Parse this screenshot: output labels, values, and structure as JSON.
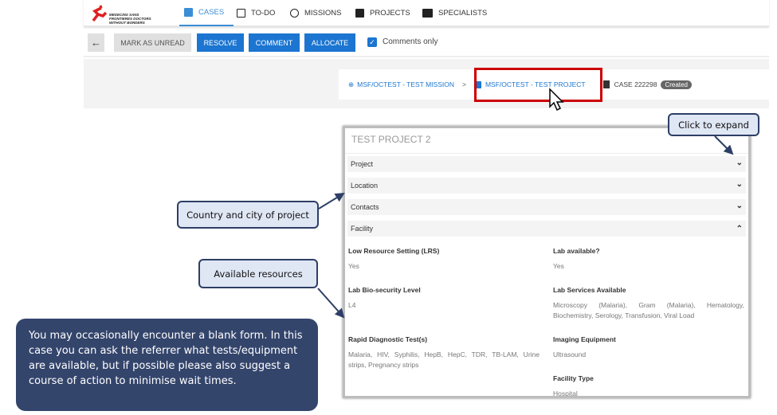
{
  "nav": {
    "logo_text": "MEDECINS SANS FRONTIERES DOCTORS WITHOUT BORDERS",
    "tabs": [
      {
        "label": "CASES",
        "icon": "clipboard-icon",
        "active": true
      },
      {
        "label": "TO-DO",
        "icon": "calendar-check-icon"
      },
      {
        "label": "MISSIONS",
        "icon": "globe-icon"
      },
      {
        "label": "PROJECTS",
        "icon": "plus-square-icon"
      },
      {
        "label": "SPECIALISTS",
        "icon": "id-card-icon"
      }
    ]
  },
  "toolbar": {
    "back_icon": "arrow-left-icon",
    "mark_unread": "MARK AS UNREAD",
    "resolve": "RESOLVE",
    "comment": "COMMENT",
    "allocate": "ALLOCATE",
    "comments_only": "Comments only",
    "comments_only_checked": true
  },
  "breadcrumb": {
    "mission": "MSF/OCTEST - TEST MISSION",
    "sep": ">",
    "project": "MSF/OCTEST - TEST PROJECT",
    "case": "CASE 222298",
    "status": "Created"
  },
  "card": {
    "title": "TEST PROJECT 2",
    "sections": [
      {
        "label": "Project",
        "expanded": false
      },
      {
        "label": "Location",
        "expanded": false
      },
      {
        "label": "Contacts",
        "expanded": false
      },
      {
        "label": "Facility",
        "expanded": true
      }
    ],
    "fields": {
      "lrs_label": "Low Resource Setting (LRS)",
      "lrs": "Yes",
      "lab_label": "Lab available?",
      "lab": "Yes",
      "bio_label": "Lab Bio-security Level",
      "bio": "L4",
      "services_label": "Lab Services Available",
      "services": "Microscopy (Malaria), Gram (Malaria), Hematology, Biochemistry, Serology, Transfusion, Viral Load",
      "rdt_label": "Rapid Diagnostic Test(s)",
      "rdt": "Malaria, HIV, Syphilis, HepB, HepC, TDR, TB-LAM, Urine strips, Pregnancy strips",
      "imaging_label": "Imaging Equipment",
      "imaging": "Ultrasound",
      "type_label": "Facility Type",
      "type": "Hospital"
    }
  },
  "callouts": {
    "expand": "Click to expand",
    "country": "Country and city of project",
    "resources": "Available resources",
    "note": "You may occasionally encounter a blank form. In this case you can ask the referrer what tests/equipment are available, but if possible please also suggest a course of action to minimise wait times."
  },
  "colors": {
    "primary": "#1c75d0",
    "highlight": "#cc0000",
    "callout_dark": "#34456c"
  }
}
